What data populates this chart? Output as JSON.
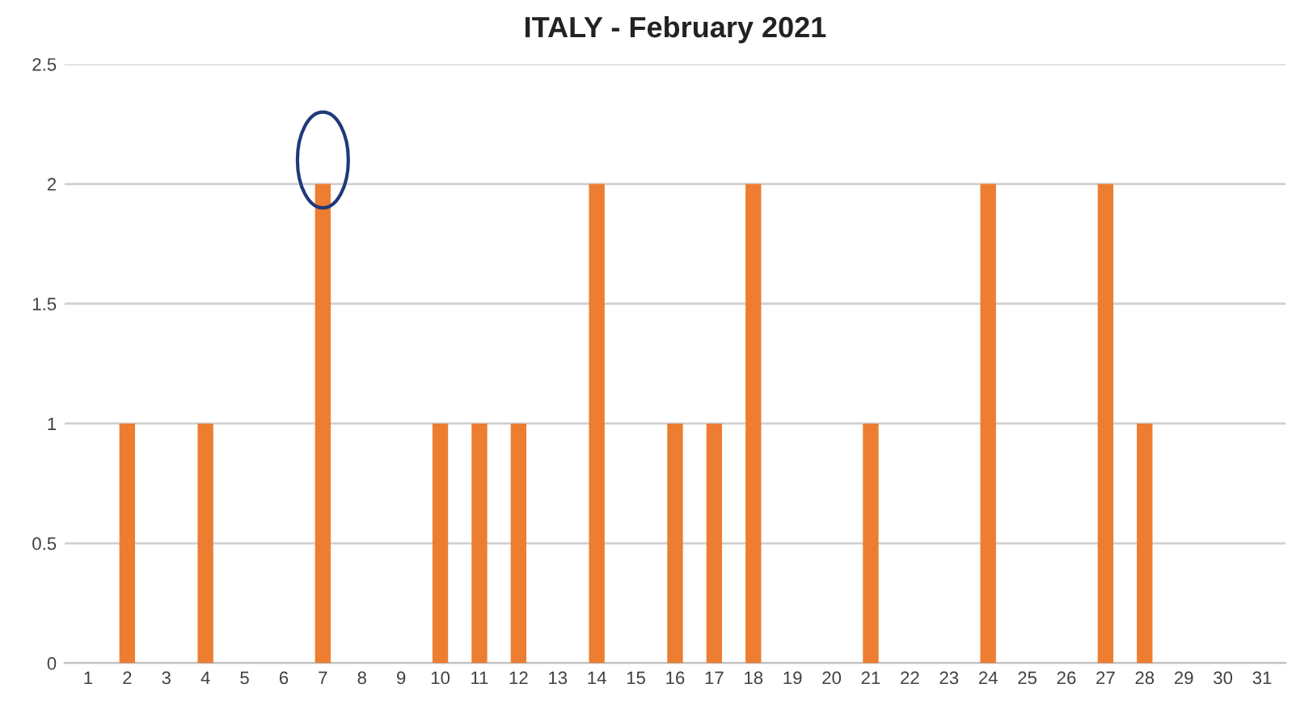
{
  "chart_data": {
    "type": "bar",
    "title": "ITALY - February 2021",
    "categories": [
      "1",
      "2",
      "3",
      "4",
      "5",
      "6",
      "7",
      "8",
      "9",
      "10",
      "11",
      "12",
      "13",
      "14",
      "15",
      "16",
      "17",
      "18",
      "19",
      "20",
      "21",
      "22",
      "23",
      "24",
      "25",
      "26",
      "27",
      "28",
      "29",
      "30",
      "31"
    ],
    "values": [
      0,
      1,
      0,
      1,
      0,
      0,
      2,
      0,
      0,
      1,
      1,
      1,
      0,
      2,
      0,
      1,
      1,
      2,
      0,
      0,
      1,
      0,
      0,
      2,
      0,
      0,
      2,
      1,
      0,
      0,
      0
    ],
    "color": "#ed7d31",
    "ylim": [
      0,
      2.5
    ],
    "yticks": [
      0,
      0.5,
      1,
      1.5,
      2,
      2.5
    ],
    "grid": "y"
  }
}
